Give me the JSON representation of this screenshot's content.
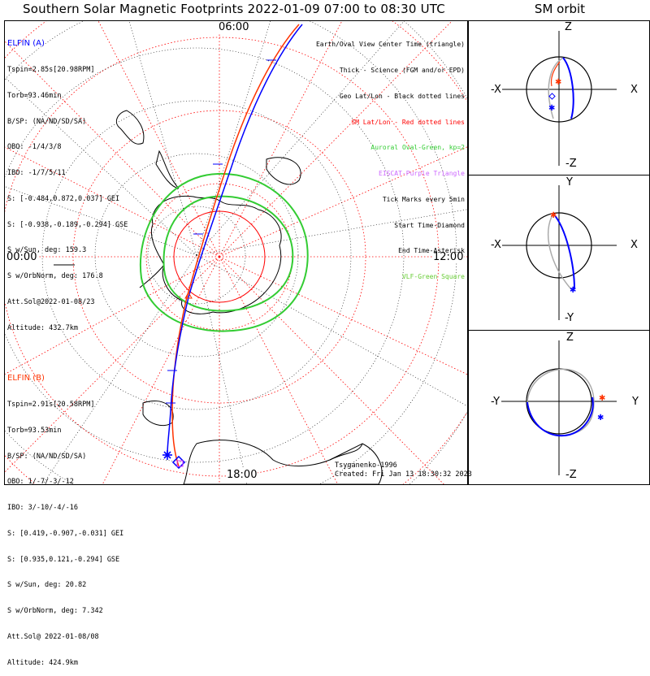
{
  "title": "Southern Solar Magnetic Footprints 2022-01-09 07:00 to 08:30 UTC",
  "orbit_title": "SM orbit",
  "mlt_labels": {
    "top": "06:00",
    "left": "00:00",
    "right": "12:00",
    "bottom": "18:00"
  },
  "elfin_a": {
    "name": "ELFIN (A)",
    "color": "#0000ff",
    "lines": [
      "Tspin=2.85s[20.98RPM]",
      "Torb=93.46min",
      "B/SP: (NA/ND/SD/SA)",
      "OBO: -1/4/3/8",
      "IBO: -1/7/5/11",
      "S: [-0.484,0.872,0.037] GEI",
      "S: [-0.938,-0.189,-0.294] GSE",
      "S w/Sun, deg: 159.3",
      "S w/OrbNorm, deg: 176.8",
      "Att.Sol@2022-01-08/23",
      "Altitude: 432.7km"
    ]
  },
  "elfin_b": {
    "name": "ELFIN (B)",
    "color": "#ff3300",
    "lines": [
      "Tspin=2.91s[20.58RPM]",
      "Torb=93.53min",
      "B/SP: (NA/ND/SD/SA)",
      "OBO: 1/-7/-3/-12",
      "IBO: 3/-10/-4/-16",
      "S: [0.419,-0.907,-0.031] GEI",
      "S: [0.935,0.121,-0.294] GSE",
      "S w/Sun, deg: 20.82",
      "S w/OrbNorm, deg: 7.342",
      "Att.Sol@ 2022-01-08/08",
      "Altitude: 424.9km"
    ]
  },
  "legend": [
    {
      "text": "Earth/Oval View Center Time (triangle)",
      "color": "#000000"
    },
    {
      "text": "Thick - Science (FGM and/or EPD)",
      "color": "#000000"
    },
    {
      "text": "Geo Lat/Lon - Black dotted lines",
      "color": "#000000"
    },
    {
      "text": "SM Lat/Lon - Red dotted lines",
      "color": "#ff0000"
    },
    {
      "text": "Auroral Oval-Green, kp=2",
      "color": "#33cc33"
    },
    {
      "text": "EISCAT-Purple Triangle",
      "color": "#cc66ff"
    },
    {
      "text": "Tick Marks every 5min",
      "color": "#000000"
    },
    {
      "text": "Start Time-Diamond",
      "color": "#000000"
    },
    {
      "text": "End Time-Asterisk",
      "color": "#000000"
    },
    {
      "text": "VLF-Green Square",
      "color": "#66cc33"
    }
  ],
  "footer": {
    "model": "Tsyganenko-1996",
    "created": "Created: Fri Jan 13 18:30:32 2023"
  },
  "orbit_panels": [
    {
      "top": "Z",
      "bottom": "-Z",
      "left": "-X",
      "right": "X"
    },
    {
      "top": "Y",
      "bottom": "-Y",
      "left": "-X",
      "right": "X"
    },
    {
      "top": "Z",
      "bottom": "-Z",
      "left": "-Y",
      "right": "Y"
    }
  ]
}
